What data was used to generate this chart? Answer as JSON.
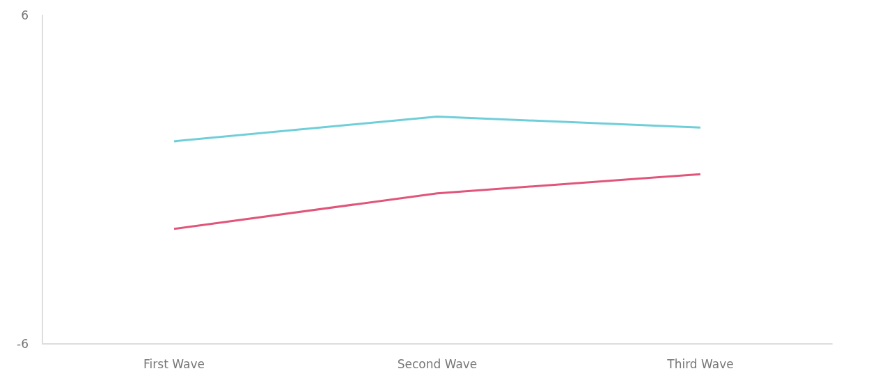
{
  "chart_data": {
    "type": "line",
    "categories": [
      "First Wave",
      "Second Wave",
      "Third Wave"
    ],
    "series": [
      {
        "color": "#6fcfd9",
        "values": [
          1.4,
          2.3,
          1.9
        ]
      },
      {
        "color": "#e05579",
        "values": [
          -1.8,
          -0.5,
          0.2
        ]
      }
    ],
    "ylim": [
      -6,
      6
    ],
    "yticks": [
      -6,
      6
    ],
    "marker": "none",
    "line_style": "solid"
  }
}
